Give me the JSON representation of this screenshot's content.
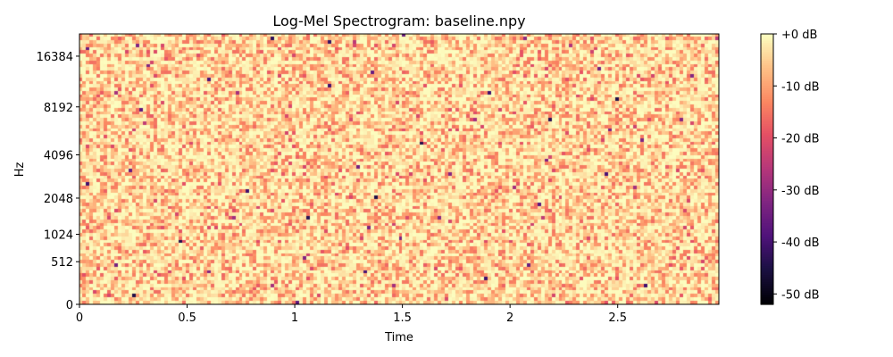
{
  "chart_data": {
    "type": "heatmap",
    "title": "Log-Mel Spectrogram: baseline.npy",
    "xlabel": "Time",
    "ylabel": "Hz",
    "xlim": [
      0,
      2.97
    ],
    "x_ticks": [
      0,
      0.5,
      1,
      1.5,
      2,
      2.5
    ],
    "x_tick_labels": [
      "0",
      "0.5",
      "1",
      "1.5",
      "2",
      "2.5"
    ],
    "y_scale": "mel",
    "y_ticks": [
      0,
      512,
      1024,
      2048,
      4096,
      8192,
      16384
    ],
    "y_tick_labels": [
      "0",
      "512",
      "1024",
      "2048",
      "4096",
      "8192",
      "16384"
    ],
    "ylim_hz": [
      0,
      22050
    ],
    "colormap": "magma",
    "colorbar": {
      "range_db": [
        -52,
        0
      ],
      "ticks": [
        0,
        -10,
        -20,
        -30,
        -40,
        -50
      ],
      "tick_labels": [
        "+0 dB",
        "-10 dB",
        "-20 dB",
        "-30 dB",
        "-40 dB",
        "-50 dB"
      ]
    },
    "grid": false,
    "dominant_level_db": [
      -10,
      0
    ]
  }
}
